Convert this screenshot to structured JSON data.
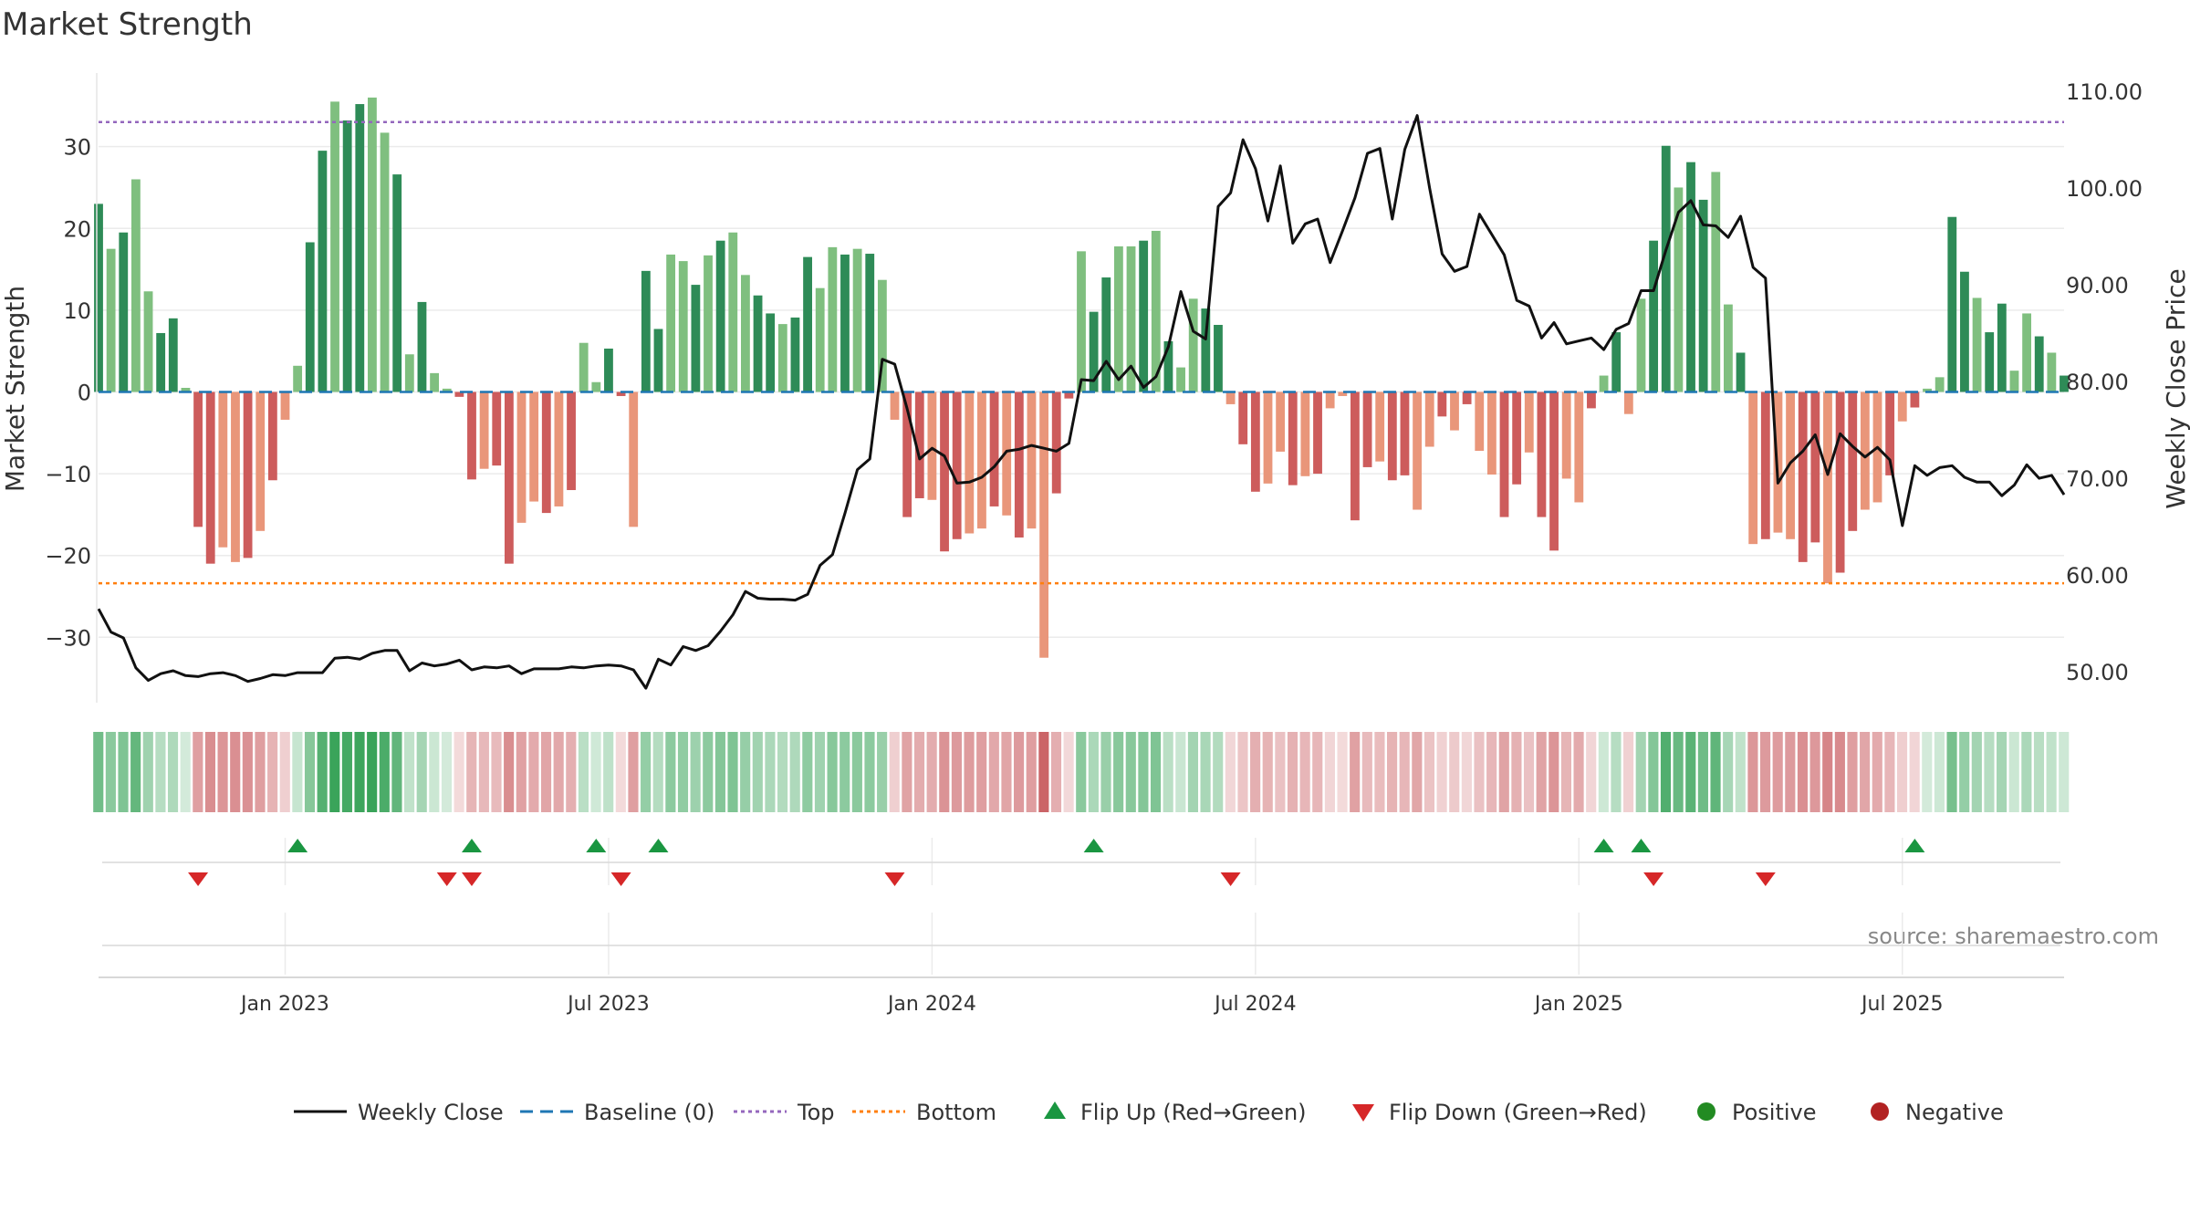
{
  "chart_data": {
    "type": "bar",
    "title": "Market Strength",
    "ylabel_left": "Market Strength",
    "ylabel_right": "Weekly Close Price",
    "source": "source: sharemaestro.com",
    "left_axis": {
      "ylim": [
        -38,
        39
      ],
      "ticks": [
        -30,
        -20,
        -10,
        0,
        10,
        20,
        30
      ],
      "tick_labels": [
        "−30",
        "−20",
        "−10",
        "0",
        "10",
        "20",
        "30"
      ]
    },
    "right_axis": {
      "ylim": [
        46.8,
        111.9
      ],
      "ticks": [
        50,
        60,
        70,
        80,
        90,
        100,
        110
      ],
      "tick_labels": [
        "50.00",
        "60.00",
        "70.00",
        "80.00",
        "90.00",
        "100.00",
        "110.00"
      ]
    },
    "x_ticks": [
      {
        "week": 15,
        "label": "Jan 2023"
      },
      {
        "week": 41,
        "label": "Jul 2023"
      },
      {
        "week": 67,
        "label": "Jan 2024"
      },
      {
        "week": 93,
        "label": "Jul 2024"
      },
      {
        "week": 119,
        "label": "Jan 2025"
      },
      {
        "week": 145,
        "label": "Jul 2025"
      }
    ],
    "reference_lines": {
      "top": 33.0,
      "bottom": -23.4,
      "baseline": 0
    },
    "colors": {
      "pos_strong": "#2e8b57",
      "pos_weak": "#7fbf7f",
      "neg_strong": "#cd5c5c",
      "neg_weak": "#e9967a",
      "price_line": "#111111",
      "baseline": "#1f77b4",
      "top": "#9467bd",
      "bottom": "#ff7f0e",
      "flip_up": "#1a9641",
      "flip_down": "#d62728",
      "positive": "#228b22",
      "negative": "#b22222"
    },
    "strength": [
      23,
      17.5,
      19.5,
      26,
      12.3,
      7.2,
      9,
      0.5,
      -16.5,
      -21,
      -19,
      -20.8,
      -20.3,
      -17,
      -10.8,
      -3.4,
      3.2,
      18.3,
      29.5,
      35.5,
      33.2,
      35.2,
      36,
      31.7,
      26.6,
      4.6,
      11,
      2.3,
      0.4,
      -0.6,
      -10.7,
      -9.4,
      -9,
      -21,
      -16,
      -13.4,
      -14.8,
      -14,
      -12,
      6,
      1.2,
      5.3,
      -0.5,
      -16.5,
      14.8,
      7.7,
      16.8,
      16,
      13.1,
      16.7,
      18.5,
      19.5,
      14.3,
      11.8,
      9.6,
      8.3,
      9.1,
      16.5,
      12.7,
      17.7,
      16.8,
      17.5,
      16.9,
      13.7,
      -3.4,
      -15.3,
      -13,
      -13.2,
      -19.5,
      -18,
      -17.3,
      -16.7,
      -14,
      -15.1,
      -17.8,
      -16.7,
      -32.5,
      -12.4,
      -0.8,
      17.2,
      9.8,
      14,
      17.8,
      17.8,
      18.5,
      19.7,
      6.2,
      3,
      11.4,
      10.2,
      8.2,
      -1.5,
      -6.4,
      -12.2,
      -11.2,
      -7.3,
      -11.4,
      -10.3,
      -10,
      -2,
      -0.5,
      -15.7,
      -9.2,
      -8.5,
      -10.8,
      -10.2,
      -14.4,
      -6.7,
      -3,
      -4.7,
      -1.5,
      -7.2,
      -10.1,
      -15.3,
      -11.3,
      -7.4,
      -15.3,
      -19.4,
      -10.6,
      -13.5,
      -2,
      2,
      7.3,
      -2.7,
      11.4,
      18.5,
      30.1,
      25,
      28.1,
      23.5,
      26.9,
      10.7,
      4.8,
      -18.6,
      -18,
      -17.2,
      -18,
      -20.8,
      -18.4,
      -23.4,
      -22.1,
      -17,
      -14.4,
      -13.5,
      -10.2,
      -3.6,
      -1.9,
      0.4,
      1.8,
      21.4,
      14.7,
      11.5,
      7.3,
      10.8,
      2.6,
      9.6,
      6.8,
      4.8,
      2
    ],
    "price": [
      56.5,
      54.1,
      53.5,
      50.4,
      49.1,
      49.8,
      50.1,
      49.6,
      49.5,
      49.8,
      49.9,
      49.6,
      49,
      49.3,
      49.7,
      49.6,
      49.9,
      49.9,
      49.9,
      51.4,
      51.5,
      51.3,
      51.9,
      52.2,
      52.2,
      50.1,
      50.9,
      50.6,
      50.8,
      51.2,
      50.2,
      50.5,
      50.4,
      50.6,
      49.8,
      50.3,
      50.3,
      50.3,
      50.5,
      50.4,
      50.6,
      50.7,
      50.6,
      50.2,
      48.3,
      51.3,
      50.7,
      52.6,
      52.2,
      52.7,
      54.2,
      55.9,
      58.3,
      57.6,
      57.5,
      57.5,
      57.4,
      58,
      61,
      62.1,
      66.4,
      70.9,
      72,
      82.3,
      81.8,
      77.2,
      72,
      73.1,
      72.3,
      69.5,
      69.6,
      70.1,
      71.2,
      72.8,
      73,
      73.4,
      73.1,
      72.8,
      73.6,
      80.2,
      80.1,
      82.1,
      80.2,
      81.6,
      79.4,
      80.5,
      83.6,
      89.3,
      85.2,
      84.4,
      98.1,
      99.5,
      105,
      102,
      96.6,
      102.3,
      94.3,
      96.3,
      96.8,
      92.3,
      95.6,
      99,
      103.6,
      104.1,
      96.8,
      104,
      107.5,
      100,
      93.2,
      91.4,
      91.9,
      97.3,
      95.2,
      93.1,
      88.4,
      87.8,
      84.5,
      86.1,
      83.9,
      84.2,
      84.5,
      83.3,
      85.4,
      86,
      89.4,
      89.4,
      93.6,
      97.5,
      98.7,
      96.2,
      96.1,
      94.9,
      97.1,
      91.8,
      90.7,
      69.5,
      71.6,
      72.8,
      74.5,
      70.4,
      74.6,
      73.3,
      72.2,
      73.2,
      71.9,
      65.1,
      71.3,
      70.3,
      71.1,
      71.3,
      70.1,
      69.6,
      69.6,
      68.2,
      69.3,
      71.4,
      70,
      70.3,
      68.3
    ],
    "flip_up_weeks": [
      16,
      30,
      40,
      45,
      80,
      121,
      124,
      146
    ],
    "flip_down_weeks": [
      8,
      28,
      30,
      42,
      64,
      91,
      125,
      134
    ],
    "legend": [
      {
        "label": "Weekly Close",
        "kind": "line",
        "color": "#111111",
        "dash": ""
      },
      {
        "label": "Baseline (0)",
        "kind": "line",
        "color": "#1f77b4",
        "dash": "14,8"
      },
      {
        "label": "Top",
        "kind": "line",
        "color": "#9467bd",
        "dash": "4,4"
      },
      {
        "label": "Bottom",
        "kind": "line",
        "color": "#ff7f0e",
        "dash": "4,4"
      },
      {
        "label": "Flip Up (Red→Green)",
        "kind": "tri-up",
        "color": "#1a9641"
      },
      {
        "label": "Flip Down (Green→Red)",
        "kind": "tri-down",
        "color": "#d62728"
      },
      {
        "label": "Positive",
        "kind": "dot",
        "color": "#228b22"
      },
      {
        "label": "Negative",
        "kind": "dot",
        "color": "#b22222"
      }
    ]
  }
}
